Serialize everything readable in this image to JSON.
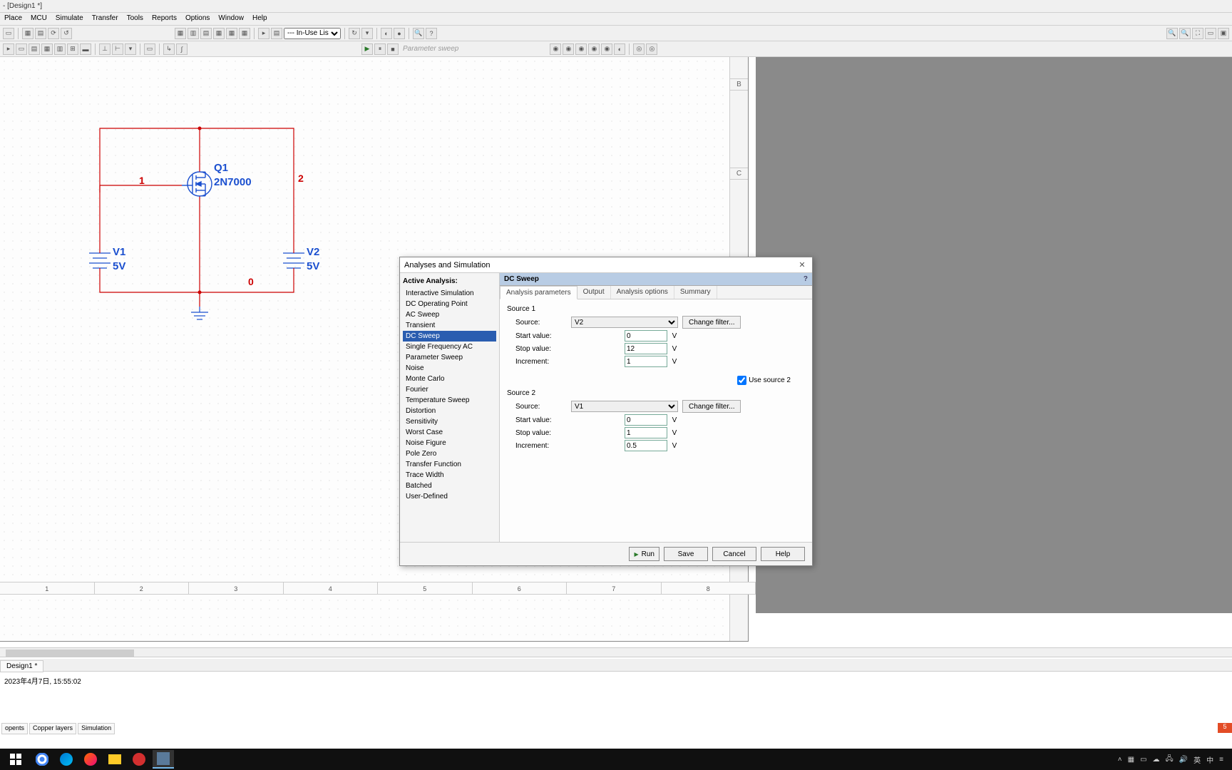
{
  "window": {
    "title": "- [Design1 *]"
  },
  "menu": [
    "Place",
    "MCU",
    "Simulate",
    "Transfer",
    "Tools",
    "Reports",
    "Options",
    "Window",
    "Help"
  ],
  "toolbar1_combo": "--- In-Use List ---",
  "toolbar2_label": "Parameter sweep",
  "ruler_h": [
    "1",
    "2",
    "3",
    "4",
    "5",
    "6",
    "7",
    "8"
  ],
  "ruler_v": {
    "B": "B",
    "C": "C"
  },
  "circuit": {
    "q1": {
      "ref": "Q1",
      "value": "2N7000"
    },
    "v1": {
      "ref": "V1",
      "value": "5V"
    },
    "v2": {
      "ref": "V2",
      "value": "5V"
    },
    "nets": {
      "n1": "1",
      "n2": "2",
      "n0": "0"
    },
    "wire_color": "#cc0000",
    "text_color": "#1a4fcf",
    "font_size": 14
  },
  "dialog": {
    "title": "Analyses and Simulation",
    "active_label": "Active Analysis:",
    "analyses": [
      "Interactive Simulation",
      "DC Operating Point",
      "AC Sweep",
      "Transient",
      "DC Sweep",
      "Single Frequency AC",
      "Parameter Sweep",
      "Noise",
      "Monte Carlo",
      "Fourier",
      "Temperature Sweep",
      "Distortion",
      "Sensitivity",
      "Worst Case",
      "Noise Figure",
      "Pole Zero",
      "Transfer Function",
      "Trace Width",
      "Batched",
      "User-Defined"
    ],
    "selected": "DC Sweep",
    "panel_title": "DC Sweep",
    "tabs": [
      "Analysis parameters",
      "Output",
      "Analysis options",
      "Summary"
    ],
    "active_tab": "Analysis parameters",
    "src1": {
      "title": "Source 1",
      "source_label": "Source:",
      "source": "V2",
      "start_label": "Start value:",
      "start": "0",
      "stop_label": "Stop value:",
      "stop": "12",
      "inc_label": "Increment:",
      "inc": "1",
      "change_filter": "Change filter...",
      "unit": "V"
    },
    "use_src2_label": "Use source 2",
    "use_src2_checked": true,
    "src2": {
      "title": "Source 2",
      "source_label": "Source:",
      "source": "V1",
      "start_label": "Start value:",
      "start": "0",
      "stop_label": "Stop value:",
      "stop": "1",
      "inc_label": "Increment:",
      "inc": "0.5",
      "change_filter": "Change filter...",
      "unit": "V"
    },
    "buttons": {
      "run": "Run",
      "save": "Save",
      "cancel": "Cancel",
      "help": "Help"
    }
  },
  "design_tab": "Design1 *",
  "status_text": "2023年4月7日, 15:55:02",
  "footer_tabs": [
    "opents",
    "Copper layers",
    "Simulation"
  ],
  "tray": {
    "ime": "英",
    "lang": "中"
  }
}
